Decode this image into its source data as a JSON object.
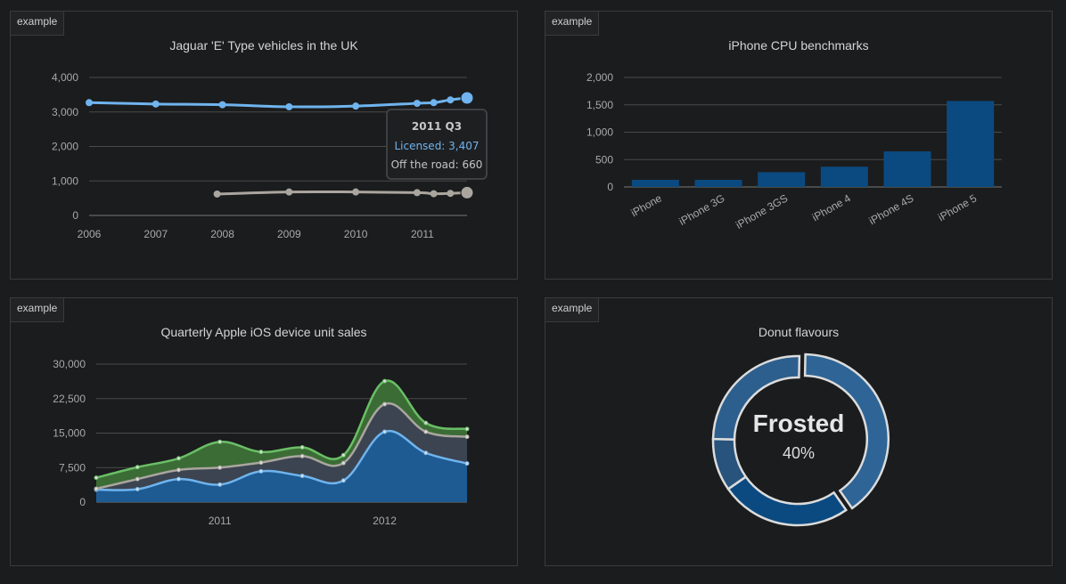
{
  "panels": [
    {
      "tag": "example",
      "title": "Jaguar 'E' Type vehicles in the UK"
    },
    {
      "tag": "example",
      "title": "iPhone CPU benchmarks"
    },
    {
      "tag": "example",
      "title": "Quarterly Apple iOS device unit sales"
    },
    {
      "tag": "example",
      "title": "Donut flavours"
    }
  ],
  "tooltip": {
    "title": "2011 Q3",
    "line1": "Licensed: 3,407",
    "line2": "Off the road: 660"
  },
  "donut_center": {
    "label": "Frosted",
    "value": "40%"
  },
  "chart_data": [
    {
      "type": "line",
      "title": "Jaguar 'E' Type vehicles in the UK",
      "xlabel": "",
      "ylabel": "",
      "xlim": [
        2006,
        2011.67
      ],
      "ylim": [
        0,
        4000
      ],
      "yticks": [
        "0",
        "1,000",
        "2,000",
        "3,000",
        "4,000"
      ],
      "ytick_values": [
        0,
        1000,
        2000,
        3000,
        4000
      ],
      "xticks": [
        "2006",
        "2007",
        "2008",
        "2009",
        "2010",
        "2011"
      ],
      "xtick_values": [
        2006,
        2007,
        2008,
        2009,
        2010,
        2011
      ],
      "grid": true,
      "series": [
        {
          "name": "Licensed",
          "color": "#6fb4ee",
          "x": [
            2006,
            2007,
            2008,
            2009,
            2010,
            2010.92,
            2011.17,
            2011.42,
            2011.67
          ],
          "y": [
            3270,
            3230,
            3210,
            3150,
            3170,
            3250,
            3270,
            3350,
            3407
          ]
        },
        {
          "name": "Off the road",
          "color": "#aaa69f",
          "x": [
            2007.92,
            2009,
            2010,
            2010.92,
            2011.17,
            2011.42,
            2011.67
          ],
          "y": [
            620,
            680,
            680,
            660,
            630,
            640,
            660
          ]
        }
      ],
      "highlight_index": 8
    },
    {
      "type": "bar",
      "title": "iPhone CPU benchmarks",
      "xlabel": "",
      "ylabel": "",
      "categories": [
        "iPhone",
        "iPhone 3G",
        "iPhone 3GS",
        "iPhone 4",
        "iPhone 4S",
        "iPhone 5"
      ],
      "values": [
        130,
        130,
        270,
        370,
        650,
        1570
      ],
      "ylim": [
        0,
        2000
      ],
      "yticks": [
        "0",
        "500",
        "1,000",
        "1,500",
        "2,000"
      ],
      "ytick_values": [
        0,
        500,
        1000,
        1500,
        2000
      ],
      "grid": true,
      "color": "#0b4a80"
    },
    {
      "type": "area",
      "stacked": true,
      "title": "Quarterly Apple iOS device unit sales",
      "xlabel": "",
      "ylabel": "",
      "x": [
        2010.25,
        2010.5,
        2010.75,
        2011.0,
        2011.25,
        2011.5,
        2011.75,
        2012.0,
        2012.25,
        2012.5
      ],
      "xlim": [
        2010.25,
        2012.5
      ],
      "ylim": [
        0,
        30000
      ],
      "yticks": [
        "0",
        "7,500",
        "15,000",
        "22,500",
        "30,000"
      ],
      "ytick_values": [
        0,
        7500,
        15000,
        22500,
        30000
      ],
      "xticks": [
        "2011",
        "2012"
      ],
      "xtick_values": [
        2011.0,
        2012.0
      ],
      "grid": true,
      "series": [
        {
          "color": "#6fb4ee",
          "fill": "#1e5b93",
          "values": [
            2700,
            2800,
            5000,
            3800,
            6700,
            5700,
            4700,
            15300,
            10700,
            8400
          ]
        },
        {
          "color": "#aaa69f",
          "fill": "#3b4450",
          "values": [
            200,
            2200,
            2000,
            3700,
            1900,
            4300,
            3800,
            6000,
            4600,
            5800
          ]
        },
        {
          "color": "#6abf66",
          "fill": "#3c6c36",
          "values": [
            2400,
            2600,
            2500,
            5600,
            2300,
            1900,
            1700,
            5000,
            1900,
            1700
          ]
        }
      ]
    },
    {
      "type": "pie",
      "donut": true,
      "title": "Donut flavours",
      "slices": [
        {
          "label": "Frosted",
          "value": 40,
          "color": "#2e6596"
        },
        {
          "label": "",
          "value": 25,
          "color": "#0b4a80"
        },
        {
          "label": "",
          "value": 10,
          "color": "#27537c"
        },
        {
          "label": "",
          "value": 25,
          "color": "#2c5f8d"
        }
      ],
      "highlight": "Frosted"
    }
  ]
}
